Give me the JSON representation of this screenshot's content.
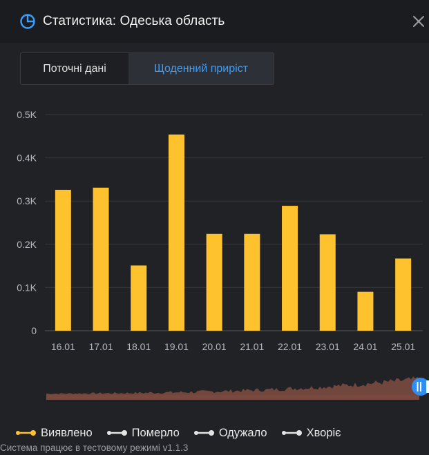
{
  "header": {
    "title": "Статистика: Одеська область",
    "icon": "pie-chart-icon",
    "close_icon": "close-icon",
    "accent_color": "#3aa0ff"
  },
  "tabs": [
    {
      "label": "Поточні дані",
      "active": false
    },
    {
      "label": "Щоденний приріст",
      "active": true
    }
  ],
  "chart_data": {
    "type": "bar",
    "categories": [
      "16.01",
      "17.01",
      "18.01",
      "19.01",
      "20.01",
      "21.01",
      "22.01",
      "23.01",
      "24.01",
      "25.01"
    ],
    "series": [
      {
        "name": "Виявлено",
        "color": "#ffc22f",
        "values": [
          326,
          331,
          151,
          454,
          224,
          224,
          289,
          223,
          90,
          167
        ]
      }
    ],
    "yticks": [
      "0",
      "0.1K",
      "0.2K",
      "0.3K",
      "0.4K",
      "0.5K"
    ],
    "ylim": [
      0,
      500
    ],
    "grid": true,
    "navigator": {
      "selection_handle": "slider-handle"
    }
  },
  "legend": [
    {
      "label": "Виявлено",
      "color": "#ffc22f",
      "active": true
    },
    {
      "label": "Померло",
      "color": "#e4e4e4",
      "active": false
    },
    {
      "label": "Одужало",
      "color": "#e4e4e4",
      "active": false
    },
    {
      "label": "Хворіє",
      "color": "#e4e4e4",
      "active": false
    }
  ],
  "footer": {
    "text": "Система працює в тестовому режимі v1.1.3"
  }
}
